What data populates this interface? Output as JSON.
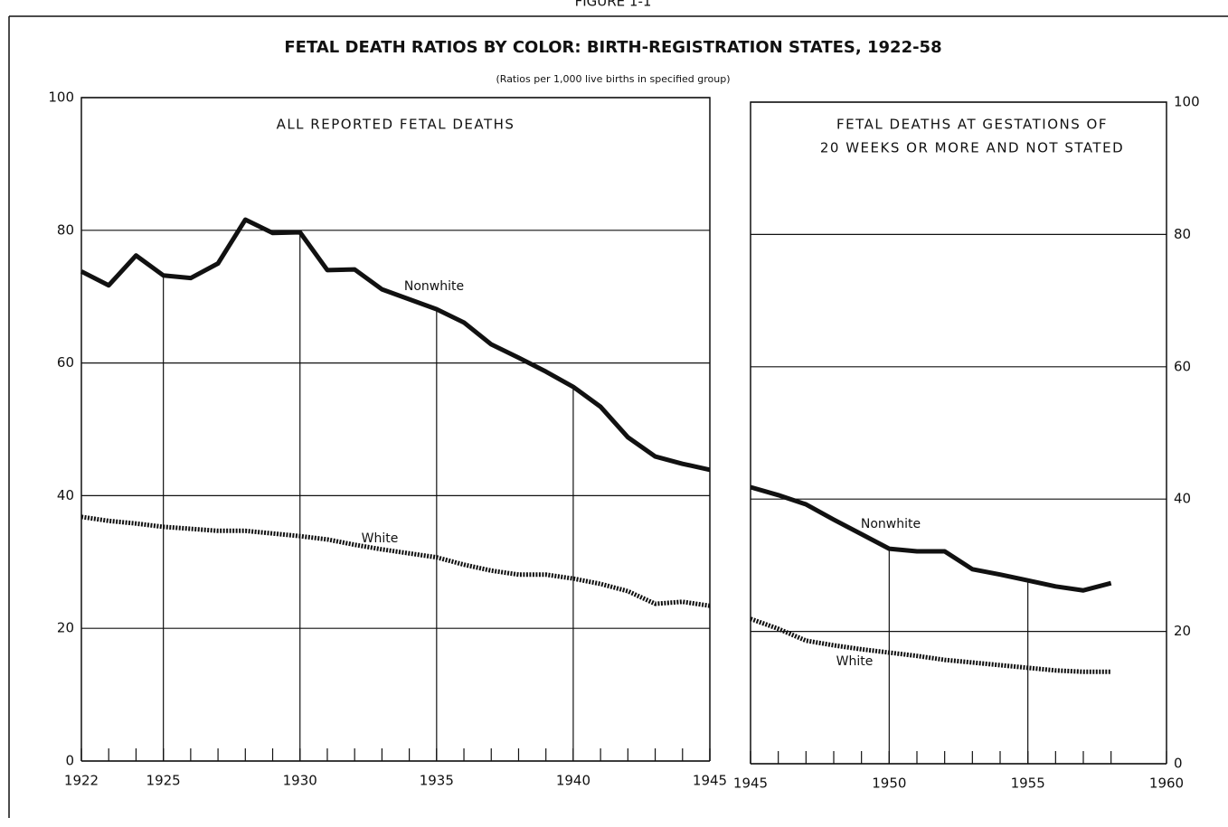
{
  "figure": "FIGURE 1-1",
  "title": "FETAL DEATH RATIOS BY COLOR: BIRTH-REGISTRATION STATES, 1922-58",
  "subtitle": "(Ratios per 1,000 live births in specified group)",
  "chart_data": [
    {
      "type": "line",
      "panel_title": [
        "ALL REPORTED FETAL DEATHS"
      ],
      "yaxis_side": "left",
      "x": [
        1922,
        1923,
        1924,
        1925,
        1926,
        1927,
        1928,
        1929,
        1930,
        1931,
        1932,
        1933,
        1934,
        1935,
        1936,
        1937,
        1938,
        1939,
        1940,
        1941,
        1942,
        1943,
        1944,
        1945
      ],
      "xlim": [
        1922,
        1945
      ],
      "xticks": [
        1922,
        1925,
        1930,
        1935,
        1940,
        1945
      ],
      "ylim": [
        0,
        100
      ],
      "yticks": [
        0,
        20,
        40,
        60,
        80,
        100
      ],
      "grid": true,
      "series": [
        {
          "name": "Nonwhite",
          "color": "#111",
          "style": "solid",
          "values": [
            73.8,
            71.7,
            76.2,
            73.2,
            72.8,
            75,
            81.6,
            79.6,
            79.7,
            74,
            74.1,
            71.1,
            69.6,
            68.1,
            66.1,
            62.8,
            60.8,
            58.7,
            56.4,
            53.4,
            48.8,
            45.9,
            44.8,
            43.9
          ]
        },
        {
          "name": "White",
          "color": "#111",
          "style": "dotted",
          "values": [
            36.8,
            36.2,
            35.8,
            35.3,
            35,
            34.7,
            34.7,
            34.3,
            33.9,
            33.4,
            32.6,
            31.9,
            31.3,
            30.7,
            29.6,
            28.7,
            28.1,
            28.1,
            27.5,
            26.7,
            25.6,
            23.7,
            24,
            23.4
          ]
        }
      ]
    },
    {
      "type": "line",
      "panel_title": [
        "FETAL DEATHS AT GESTATIONS OF",
        "20 WEEKS OR MORE AND NOT STATED"
      ],
      "yaxis_side": "right",
      "x": [
        1945,
        1946,
        1947,
        1948,
        1949,
        1950,
        1951,
        1952,
        1953,
        1954,
        1955,
        1956,
        1957,
        1958
      ],
      "xlim": [
        1945,
        1960
      ],
      "xticks": [
        1945,
        1950,
        1955,
        1960
      ],
      "ylim": [
        0,
        100
      ],
      "yticks": [
        0,
        20,
        40,
        60,
        80,
        100
      ],
      "grid": true,
      "series": [
        {
          "name": "Nonwhite",
          "color": "#111",
          "style": "solid",
          "values": [
            41.8,
            40.6,
            39.2,
            36.9,
            34.7,
            32.5,
            32.1,
            32.1,
            29.4,
            28.6,
            27.7,
            26.8,
            26.2,
            27.3
          ]
        },
        {
          "name": "White",
          "color": "#111",
          "style": "dotted",
          "values": [
            21.9,
            20.4,
            18.6,
            17.9,
            17.3,
            16.8,
            16.3,
            15.7,
            15.3,
            14.9,
            14.5,
            14.1,
            13.9,
            13.9
          ]
        }
      ]
    }
  ]
}
